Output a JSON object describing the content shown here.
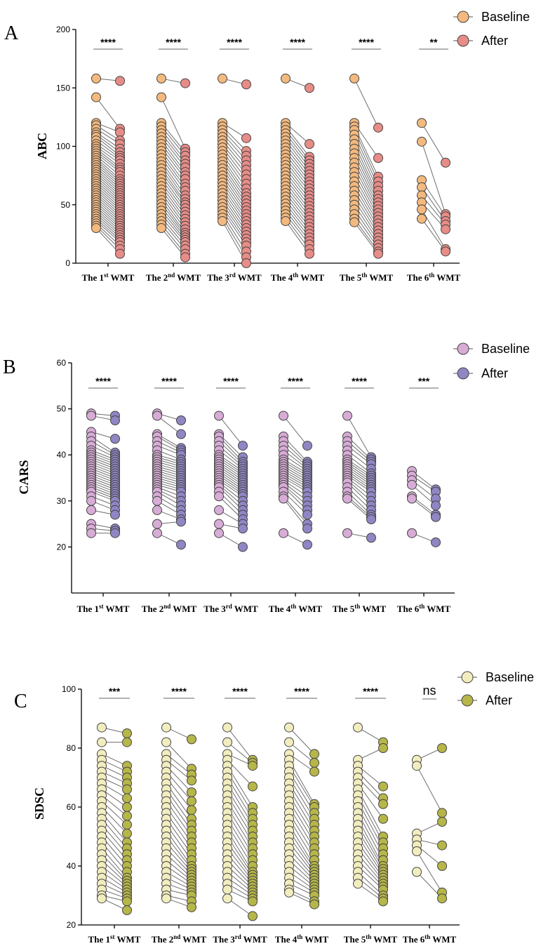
{
  "chart_data": [
    {
      "type": "scatter",
      "panel": "A",
      "ylabel": "ABC",
      "ylim": [
        0,
        200
      ],
      "yticks": [
        0,
        50,
        100,
        150,
        200
      ],
      "categories": [
        "The 1st WMT",
        "The 2nd WMT",
        "The 3rd WMT",
        "The 4th WMT",
        "The 5th WMT",
        "The 6th WMT"
      ],
      "category_parts": [
        [
          "The 1",
          "st",
          " WMT"
        ],
        [
          "The 2",
          "nd",
          " WMT"
        ],
        [
          "The 3",
          "rd",
          " WMT"
        ],
        [
          "The 4",
          "th",
          " WMT"
        ],
        [
          "The 5",
          "th",
          " WMT"
        ],
        [
          "The 6",
          "th",
          " WMT"
        ]
      ],
      "legend": [
        {
          "name": "Baseline",
          "color": "#F4B97E"
        },
        {
          "name": "After",
          "color": "#E88C87"
        }
      ],
      "significance": [
        "****",
        "****",
        "****",
        "****",
        "****",
        "**"
      ],
      "series": [
        {
          "baseline": [
            158,
            142,
            120,
            118,
            115,
            112,
            110,
            108,
            105,
            102,
            100,
            98,
            96,
            94,
            92,
            90,
            88,
            86,
            84,
            82,
            80,
            78,
            76,
            74,
            72,
            70,
            68,
            66,
            64,
            62,
            60,
            58,
            56,
            54,
            52,
            50,
            48,
            46,
            44,
            42,
            40,
            38,
            36,
            34,
            32,
            30
          ],
          "after": [
            156,
            115,
            112,
            105,
            102,
            98,
            95,
            92,
            90,
            88,
            85,
            82,
            80,
            78,
            75,
            72,
            70,
            68,
            66,
            64,
            62,
            60,
            58,
            56,
            54,
            52,
            50,
            48,
            46,
            44,
            42,
            40,
            38,
            36,
            34,
            32,
            30,
            28,
            26,
            24,
            22,
            20,
            18,
            15,
            12,
            8
          ]
        },
        {
          "baseline": [
            158,
            142,
            120,
            117,
            114,
            111,
            108,
            105,
            102,
            99,
            96,
            93,
            90,
            87,
            84,
            81,
            78,
            75,
            72,
            69,
            66,
            63,
            60,
            57,
            54,
            51,
            48,
            45,
            42,
            39,
            36,
            33,
            30
          ],
          "after": [
            154,
            98,
            95,
            92,
            88,
            85,
            82,
            78,
            75,
            72,
            68,
            65,
            62,
            58,
            55,
            52,
            50,
            47,
            44,
            41,
            38,
            35,
            32,
            29,
            26,
            24,
            22,
            20,
            18,
            15,
            12,
            8,
            5
          ]
        },
        {
          "baseline": [
            158,
            120,
            117,
            114,
            111,
            108,
            105,
            102,
            99,
            96,
            93,
            90,
            87,
            84,
            81,
            78,
            75,
            72,
            69,
            66,
            63,
            60,
            57,
            54,
            51,
            48,
            45,
            42,
            39,
            36
          ],
          "after": [
            153,
            107,
            96,
            92,
            88,
            84,
            80,
            76,
            72,
            68,
            64,
            60,
            57,
            54,
            51,
            48,
            45,
            42,
            39,
            36,
            33,
            30,
            27,
            24,
            21,
            18,
            15,
            10,
            5,
            0
          ]
        },
        {
          "baseline": [
            158,
            120,
            117,
            114,
            111,
            108,
            105,
            102,
            99,
            96,
            93,
            90,
            87,
            84,
            81,
            78,
            75,
            72,
            69,
            66,
            63,
            60,
            57,
            54,
            51,
            48,
            45,
            42,
            39,
            36
          ],
          "after": [
            150,
            102,
            91,
            88,
            85,
            82,
            79,
            76,
            73,
            70,
            67,
            64,
            61,
            58,
            55,
            52,
            49,
            46,
            43,
            40,
            37,
            34,
            31,
            28,
            25,
            22,
            19,
            16,
            12,
            8
          ]
        },
        {
          "baseline": [
            158,
            120,
            117,
            114,
            110,
            106,
            102,
            98,
            94,
            90,
            86,
            82,
            78,
            74,
            70,
            66,
            62,
            58,
            54,
            50,
            46,
            42,
            38,
            35
          ],
          "after": [
            116,
            90,
            74,
            70,
            66,
            62,
            58,
            55,
            52,
            49,
            46,
            43,
            40,
            37,
            34,
            31,
            28,
            25,
            22,
            19,
            16,
            13,
            10,
            8
          ]
        },
        {
          "baseline": [
            120,
            104,
            71,
            65,
            58,
            52,
            46,
            38
          ],
          "after": [
            86,
            42,
            40,
            36,
            33,
            29,
            12,
            10
          ]
        }
      ]
    },
    {
      "type": "scatter",
      "panel": "B",
      "ylabel": "CARS",
      "ylim": [
        10,
        60
      ],
      "yticks": [
        20,
        30,
        40,
        50,
        60
      ],
      "categories": [
        "The 1st WMT",
        "The 2nd WMT",
        "The 3rd WMT",
        "The 4th WMT",
        "The 5th WMT",
        "The 6th WMT"
      ],
      "category_parts": [
        [
          "The 1",
          "st",
          " WMT"
        ],
        [
          "The 2",
          "nd",
          " WMT"
        ],
        [
          "The 3",
          "rd",
          " WMT"
        ],
        [
          "The 4",
          "th",
          " WMT"
        ],
        [
          "The 5",
          "th",
          " WMT"
        ],
        [
          "The 6",
          "th",
          " WMT"
        ]
      ],
      "legend": [
        {
          "name": "Baseline",
          "color": "#D7ACD6"
        },
        {
          "name": "After",
          "color": "#8F86C4"
        }
      ],
      "significance": [
        "****",
        "****",
        "****",
        "****",
        "****",
        "***"
      ],
      "series": [
        {
          "baseline": [
            49,
            48.5,
            45,
            44,
            43,
            42,
            41,
            40.5,
            40,
            39.5,
            39,
            38.5,
            38,
            37.5,
            37,
            36.5,
            36,
            35.5,
            35,
            34.5,
            34,
            33.5,
            33,
            32.5,
            32,
            31,
            30,
            28,
            25,
            24,
            23
          ],
          "after": [
            48.5,
            47.5,
            43.5,
            40.5,
            40,
            39.5,
            39,
            38.5,
            38,
            37.5,
            37,
            36.5,
            36,
            35.5,
            35,
            34.5,
            34,
            33.5,
            33,
            32.5,
            32,
            31.5,
            31,
            30.5,
            30,
            29,
            28,
            27,
            24,
            23.5,
            23
          ]
        },
        {
          "baseline": [
            49,
            48.5,
            44.5,
            44,
            43,
            42,
            41,
            40,
            39.5,
            39,
            38.5,
            38,
            37.5,
            37,
            36.5,
            36,
            35.5,
            35,
            34.5,
            34,
            33.5,
            33,
            32.5,
            32,
            31,
            30,
            28,
            25,
            23
          ],
          "after": [
            47.5,
            44.5,
            41.5,
            41,
            40.5,
            40,
            39,
            38.5,
            38,
            37.5,
            37,
            36.5,
            36,
            35.5,
            35,
            34.5,
            34,
            33.5,
            33,
            32.5,
            32,
            31,
            30,
            29,
            28,
            27,
            26,
            25.5,
            20.5
          ]
        },
        {
          "baseline": [
            48.5,
            44.5,
            44,
            43,
            42,
            41,
            40,
            39.5,
            39,
            38.5,
            38,
            37.5,
            37,
            36.5,
            36,
            35.5,
            35,
            34.5,
            34,
            33.5,
            33,
            32,
            31,
            28,
            25,
            23
          ],
          "after": [
            42,
            39.5,
            38.5,
            38,
            37.5,
            37,
            36.5,
            36,
            35.5,
            35,
            34.5,
            34,
            33.5,
            33,
            32.5,
            32,
            31.5,
            31,
            30,
            29,
            28,
            27,
            26,
            25,
            24,
            20
          ]
        },
        {
          "baseline": [
            48.5,
            44,
            43,
            42,
            41,
            40,
            39,
            38.5,
            38,
            37.5,
            37,
            36.5,
            36,
            35.5,
            35,
            34.5,
            34,
            33.5,
            33,
            32,
            31,
            30.5,
            23
          ],
          "after": [
            42,
            38.5,
            38,
            37.5,
            37,
            36.5,
            36,
            35.5,
            35,
            34.5,
            34,
            33.5,
            33,
            32.5,
            32,
            31,
            30,
            29,
            28,
            27,
            25,
            24,
            20.5
          ]
        },
        {
          "baseline": [
            48.5,
            44,
            43,
            42,
            41,
            40,
            39,
            38.5,
            38,
            37.5,
            37,
            36.5,
            36,
            35.5,
            35,
            34.5,
            34,
            33,
            32,
            31,
            30.5,
            23
          ],
          "after": [
            39.5,
            39,
            38.5,
            38,
            37,
            36,
            35.5,
            35,
            34.5,
            34,
            33.5,
            33,
            32.5,
            32,
            31,
            30,
            29,
            28,
            27,
            26.5,
            26,
            22
          ]
        },
        {
          "baseline": [
            36.5,
            35.5,
            34.5,
            33.5,
            31,
            30.5,
            23
          ],
          "after": [
            32.5,
            32,
            30.5,
            29,
            27,
            26.5,
            21
          ]
        }
      ]
    },
    {
      "type": "scatter",
      "panel": "C",
      "ylabel": "SDSC",
      "ylim": [
        20,
        100
      ],
      "yticks": [
        20,
        40,
        60,
        80,
        100
      ],
      "categories": [
        "The 1st WMT",
        "The 2nd WMT",
        "The 3rd WMT",
        "The 4th WMT",
        "The 5th WMT",
        "The 6th WMT"
      ],
      "category_parts": [
        [
          "The 1",
          "st",
          " WMT"
        ],
        [
          "The 2",
          "nd",
          " WMT"
        ],
        [
          "The 3",
          "rd",
          " WMT"
        ],
        [
          "The 4",
          "th",
          " WMT"
        ],
        [
          "The 5",
          "th",
          " WMT"
        ],
        [
          "The 6",
          "th",
          " WMT"
        ]
      ],
      "legend": [
        {
          "name": "Baseline",
          "color": "#F2EDBF"
        },
        {
          "name": "After",
          "color": "#B6B649"
        }
      ],
      "significance": [
        "***",
        "****",
        "****",
        "****",
        "****",
        "ns"
      ],
      "series": [
        {
          "baseline": [
            87,
            82,
            78,
            76,
            74,
            72,
            70,
            68,
            66,
            64,
            62,
            60,
            58,
            56,
            54,
            52,
            50,
            48,
            46,
            44,
            42,
            40,
            38,
            36,
            34,
            32,
            30,
            29
          ],
          "after": [
            85,
            82,
            74,
            72,
            70,
            68,
            66,
            63,
            60,
            57,
            54,
            51,
            48,
            46,
            44,
            42,
            40,
            38,
            36,
            35,
            34,
            33,
            32,
            31,
            30,
            29,
            28,
            25
          ]
        },
        {
          "baseline": [
            87,
            82,
            78,
            76,
            74,
            72,
            70,
            68,
            66,
            64,
            62,
            60,
            58,
            56,
            54,
            52,
            50,
            48,
            46,
            44,
            42,
            40,
            38,
            36,
            34,
            32,
            30,
            29
          ],
          "after": [
            83,
            73,
            71,
            69,
            65,
            62,
            59,
            56,
            54,
            52,
            50,
            48,
            46,
            44,
            42,
            40,
            39,
            38,
            37,
            36,
            35,
            34,
            33,
            32,
            31,
            30,
            28,
            26
          ]
        },
        {
          "baseline": [
            87,
            82,
            78,
            76,
            74,
            72,
            70,
            68,
            66,
            64,
            62,
            60,
            58,
            56,
            54,
            52,
            50,
            48,
            46,
            44,
            42,
            40,
            38,
            36,
            34,
            32,
            29
          ],
          "after": [
            76,
            75,
            74,
            67,
            60,
            58,
            56,
            54,
            52,
            50,
            48,
            46,
            44,
            42,
            40,
            38,
            37,
            36,
            35,
            34,
            33,
            32,
            31,
            30,
            29,
            28,
            23
          ]
        },
        {
          "baseline": [
            87,
            82,
            78,
            76,
            74,
            72,
            70,
            68,
            66,
            64,
            62,
            60,
            58,
            56,
            54,
            52,
            50,
            48,
            46,
            44,
            42,
            40,
            38,
            36,
            34,
            32,
            31
          ],
          "after": [
            78,
            75,
            72,
            61,
            60,
            58,
            56,
            54,
            52,
            50,
            48,
            46,
            44,
            42,
            40,
            39,
            38,
            37,
            36,
            35,
            34,
            33,
            32,
            31,
            30,
            28,
            27
          ]
        },
        {
          "baseline": [
            87,
            76,
            74,
            72,
            70,
            68,
            66,
            64,
            62,
            60,
            58,
            56,
            54,
            52,
            50,
            48,
            46,
            44,
            42,
            40,
            38,
            36,
            34
          ],
          "after": [
            82,
            80,
            67,
            63,
            61,
            56,
            50,
            48,
            46,
            44,
            42,
            40,
            39,
            38,
            37,
            36,
            35,
            34,
            33,
            32,
            30,
            29,
            28
          ]
        },
        {
          "baseline": [
            76,
            74,
            51,
            49,
            47,
            45,
            38
          ],
          "after": [
            80,
            58,
            55,
            47,
            40,
            31,
            29
          ]
        }
      ]
    }
  ]
}
